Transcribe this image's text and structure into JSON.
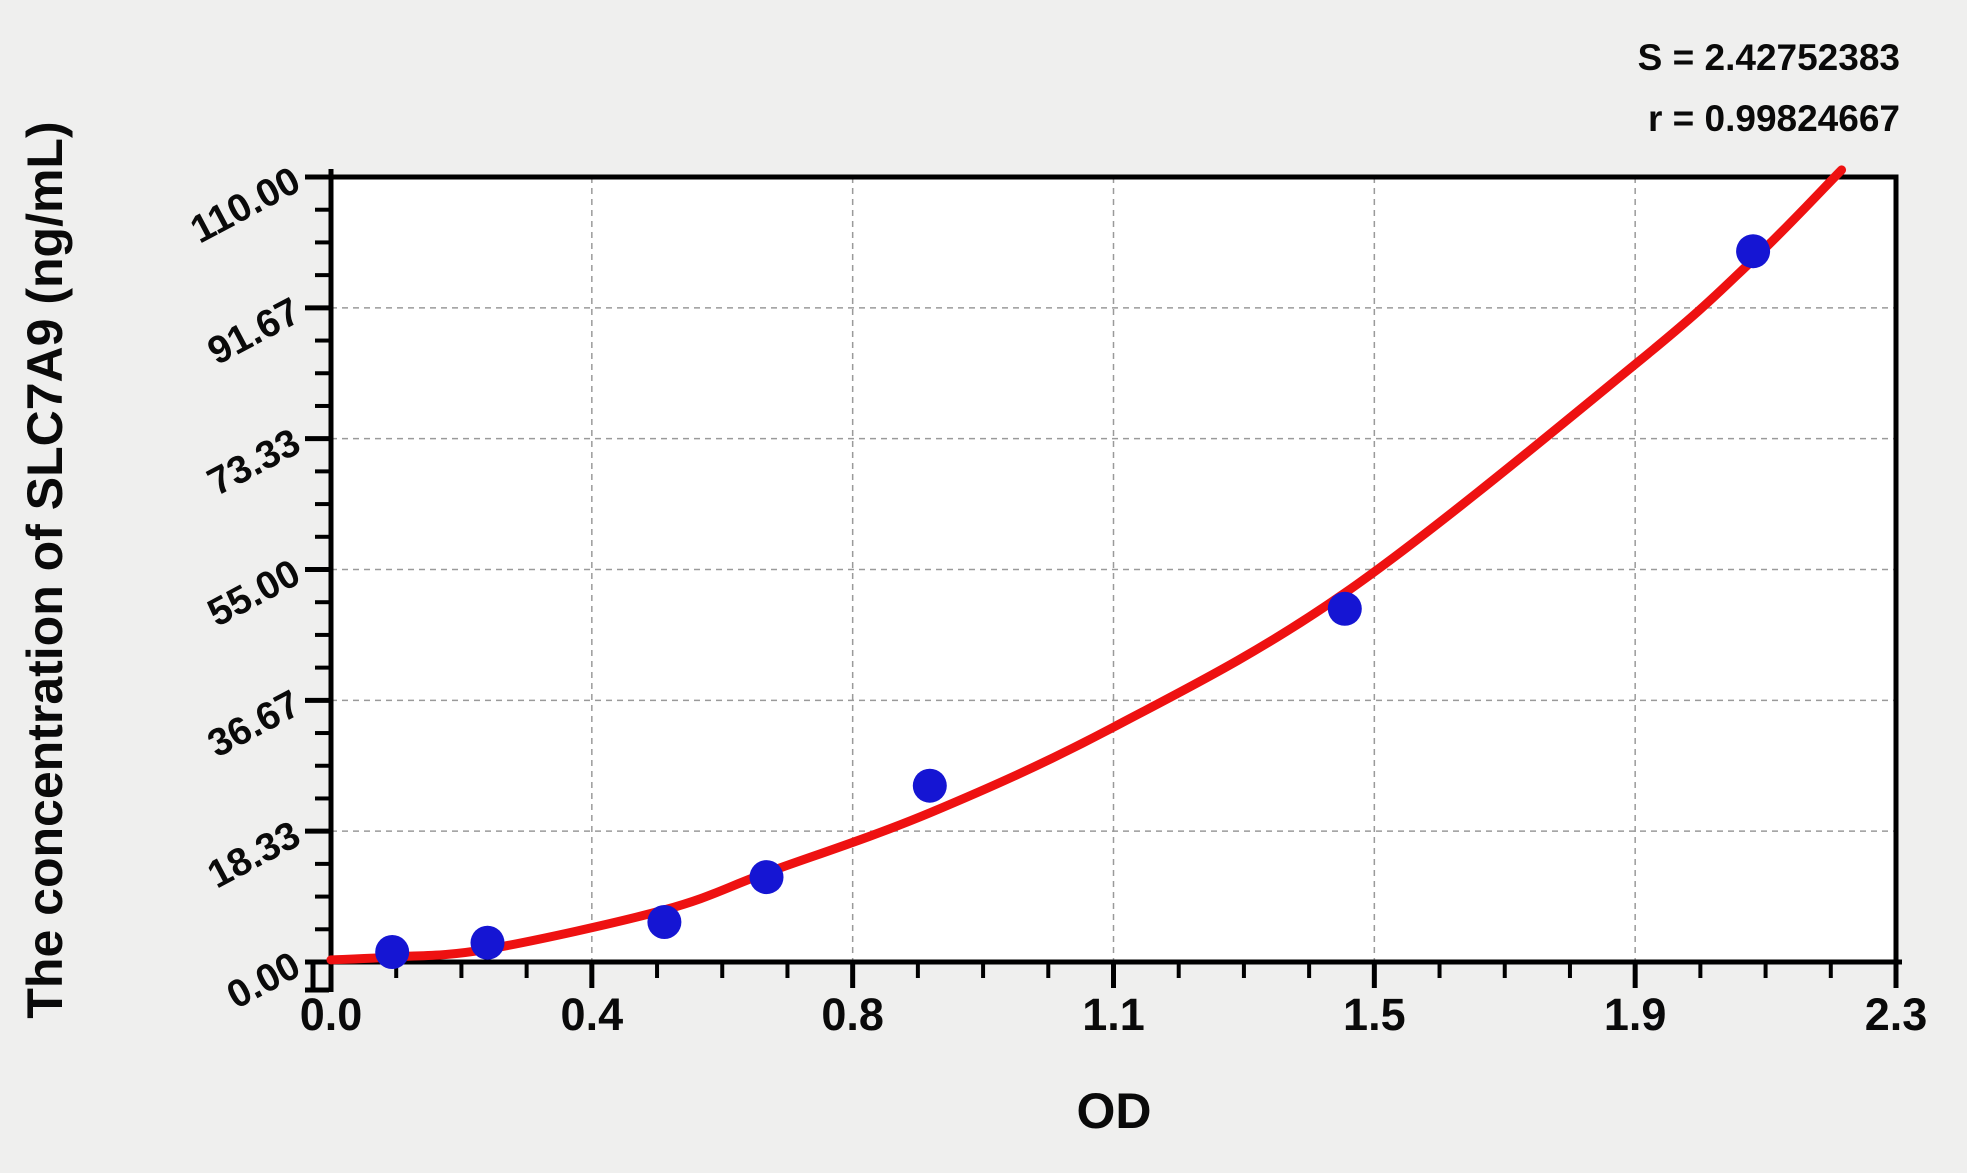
{
  "chart_data": {
    "type": "scatter",
    "title": "",
    "xlabel": "OD",
    "ylabel": "The concentration of SLC7A9 (ng/mL)",
    "xlim": [
      0,
      2.3
    ],
    "ylim": [
      0,
      110
    ],
    "x_tick_labels": [
      "0.0",
      "0.4",
      "0.8",
      "1.1",
      "1.5",
      "1.9",
      "2.3"
    ],
    "y_tick_labels": [
      "0.00",
      "18.33",
      "36.67",
      "55.00",
      "73.33",
      "91.67",
      "110.00"
    ],
    "minor_ticks_per_interval": 3,
    "grid": "dashed lines at major ticks, both axes",
    "legend": "none",
    "stats": {
      "s_label": "S = 2.42752383",
      "r_label": "r = 0.99824667",
      "S": 2.42752383,
      "r": 0.99824667
    },
    "series": [
      {
        "name": "standard-points",
        "type": "scatter",
        "color": "#1515d3",
        "marker": "circle",
        "values": [
          [
            0.09,
            1.4
          ],
          [
            0.23,
            2.7
          ],
          [
            0.49,
            5.6
          ],
          [
            0.64,
            11.9
          ],
          [
            0.88,
            24.7
          ],
          [
            1.49,
            49.5
          ],
          [
            2.09,
            99.6
          ]
        ]
      },
      {
        "name": "fitted-curve",
        "type": "line",
        "color": "#ee1111",
        "values": [
          [
            0.0,
            0.3
          ],
          [
            0.09,
            0.7
          ],
          [
            0.23,
            1.8
          ],
          [
            0.49,
            7.3
          ],
          [
            0.64,
            12.5
          ],
          [
            0.88,
            20.9
          ],
          [
            1.15,
            32.9
          ],
          [
            1.49,
            51.7
          ],
          [
            1.92,
            84.0
          ],
          [
            2.09,
            98.4
          ],
          [
            2.22,
            111.0
          ]
        ]
      }
    ],
    "colors": {
      "background": "#efefee",
      "plot_background": "#ffffff",
      "frame": "#000000",
      "grid": "#9a9a9a",
      "point": "#1515d3",
      "curve": "#ee1111",
      "text": "#0a0a0a"
    }
  }
}
